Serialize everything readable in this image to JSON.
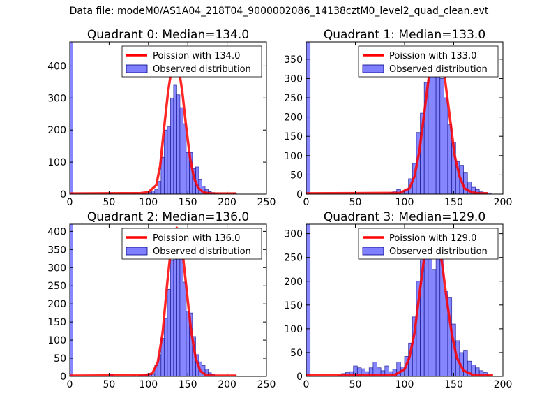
{
  "figure": {
    "title": "Data file: modeM0/AS1A04_218T04_9000002086_14138cztM0_level2_quad_clean.evt"
  },
  "colors": {
    "histogram_fill": "#7f7fff",
    "histogram_edge": "#00007f",
    "poisson_line": "#ff0000",
    "poisson_halo": "#ff8f8f"
  },
  "chart_data": [
    {
      "type": "bar",
      "title": "Quadrant 0: Median=134.0",
      "xlim": [
        0,
        250
      ],
      "ylim": [
        0,
        475
      ],
      "xticks": [
        0,
        50,
        100,
        150,
        200,
        250
      ],
      "yticks": [
        0,
        100,
        200,
        300,
        400
      ],
      "legend": {
        "position": "top-right",
        "line_label": "Poission with 134.0",
        "hist_label": "Observed distribution"
      },
      "histogram": {
        "bins": [
          [
            0,
            4,
            475
          ],
          [
            50,
            54,
            2
          ],
          [
            80,
            84,
            1
          ],
          [
            92,
            96,
            2
          ],
          [
            96,
            100,
            4
          ],
          [
            100,
            104,
            6
          ],
          [
            104,
            108,
            10
          ],
          [
            108,
            112,
            14
          ],
          [
            112,
            116,
            40
          ],
          [
            116,
            120,
            115
          ],
          [
            120,
            124,
            200
          ],
          [
            124,
            128,
            210
          ],
          [
            128,
            132,
            300
          ],
          [
            132,
            136,
            340
          ],
          [
            136,
            140,
            310
          ],
          [
            140,
            144,
            270
          ],
          [
            144,
            148,
            220
          ],
          [
            148,
            152,
            130
          ],
          [
            152,
            156,
            130
          ],
          [
            156,
            160,
            80
          ],
          [
            160,
            164,
            85
          ],
          [
            164,
            168,
            45
          ],
          [
            168,
            172,
            25
          ],
          [
            172,
            176,
            15
          ],
          [
            176,
            180,
            8
          ],
          [
            180,
            184,
            5
          ],
          [
            184,
            188,
            3
          ],
          [
            208,
            212,
            1
          ]
        ]
      },
      "poisson": {
        "x": [
          0,
          90,
          100,
          110,
          115,
          120,
          125,
          130,
          134,
          138,
          143,
          148,
          153,
          158,
          163,
          170,
          180,
          212
        ],
        "y": [
          2,
          3,
          6,
          28,
          90,
          210,
          320,
          400,
          415,
          400,
          320,
          210,
          110,
          50,
          20,
          5,
          2,
          2
        ]
      }
    },
    {
      "type": "bar",
      "title": "Quadrant 1: Median=133.0",
      "xlim": [
        0,
        200
      ],
      "ylim": [
        0,
        395
      ],
      "xticks": [
        0,
        50,
        100,
        150,
        200
      ],
      "yticks": [
        0,
        50,
        100,
        150,
        200,
        250,
        300,
        350
      ],
      "legend": {
        "position": "top-right",
        "line_label": "Poission with 133.0",
        "hist_label": "Observed distribution"
      },
      "histogram": {
        "bins": [
          [
            0,
            4,
            395
          ],
          [
            80,
            84,
            3
          ],
          [
            84,
            88,
            4
          ],
          [
            88,
            92,
            8
          ],
          [
            92,
            96,
            12
          ],
          [
            96,
            100,
            8
          ],
          [
            100,
            104,
            14
          ],
          [
            104,
            108,
            40
          ],
          [
            108,
            112,
            80
          ],
          [
            112,
            116,
            160
          ],
          [
            116,
            120,
            210
          ],
          [
            120,
            124,
            290
          ],
          [
            124,
            128,
            340
          ],
          [
            128,
            132,
            370
          ],
          [
            132,
            136,
            340
          ],
          [
            136,
            140,
            300
          ],
          [
            140,
            144,
            250
          ],
          [
            144,
            148,
            180
          ],
          [
            148,
            152,
            135
          ],
          [
            152,
            156,
            85
          ],
          [
            156,
            160,
            75
          ],
          [
            160,
            164,
            55
          ],
          [
            164,
            168,
            32
          ],
          [
            168,
            172,
            18
          ],
          [
            172,
            176,
            12
          ],
          [
            176,
            180,
            6
          ],
          [
            180,
            184,
            4
          ],
          [
            184,
            188,
            3
          ]
        ]
      },
      "poisson": {
        "x": [
          0,
          95,
          105,
          110,
          115,
          120,
          125,
          130,
          133,
          136,
          141,
          146,
          151,
          156,
          161,
          168,
          175,
          185
        ],
        "y": [
          2,
          3,
          15,
          45,
          110,
          210,
          310,
          370,
          378,
          365,
          300,
          200,
          100,
          45,
          15,
          5,
          2,
          2
        ]
      }
    },
    {
      "type": "bar",
      "title": "Quadrant 2: Median=136.0",
      "xlim": [
        0,
        250
      ],
      "ylim": [
        0,
        420
      ],
      "xticks": [
        0,
        50,
        100,
        150,
        200,
        250
      ],
      "yticks": [
        0,
        50,
        100,
        150,
        200,
        250,
        300,
        350,
        400
      ],
      "legend": {
        "position": "top-right",
        "line_label": "Poission with 136.0",
        "hist_label": "Observed distribution"
      },
      "histogram": {
        "bins": [
          [
            0,
            4,
            420
          ],
          [
            52,
            56,
            6
          ],
          [
            80,
            84,
            2
          ],
          [
            88,
            92,
            3
          ],
          [
            92,
            96,
            4
          ],
          [
            96,
            100,
            5
          ],
          [
            100,
            104,
            5
          ],
          [
            104,
            108,
            8
          ],
          [
            108,
            112,
            30
          ],
          [
            112,
            116,
            60
          ],
          [
            116,
            120,
            105
          ],
          [
            120,
            124,
            160
          ],
          [
            124,
            128,
            240
          ],
          [
            128,
            132,
            320
          ],
          [
            132,
            136,
            390
          ],
          [
            136,
            140,
            350
          ],
          [
            140,
            144,
            330
          ],
          [
            144,
            148,
            260
          ],
          [
            148,
            152,
            180
          ],
          [
            152,
            156,
            175
          ],
          [
            156,
            160,
            110
          ],
          [
            160,
            164,
            60
          ],
          [
            164,
            168,
            40
          ],
          [
            168,
            172,
            30
          ],
          [
            172,
            176,
            20
          ],
          [
            176,
            180,
            10
          ],
          [
            180,
            184,
            5
          ],
          [
            208,
            212,
            2
          ]
        ]
      },
      "poisson": {
        "x": [
          0,
          95,
          105,
          112,
          118,
          124,
          130,
          136,
          142,
          148,
          154,
          160,
          166,
          172,
          180,
          212
        ],
        "y": [
          2,
          3,
          8,
          40,
          120,
          260,
          380,
          410,
          370,
          250,
          130,
          50,
          15,
          5,
          2,
          2
        ]
      }
    },
    {
      "type": "bar",
      "title": "Quadrant 3: Median=129.0",
      "xlim": [
        0,
        200
      ],
      "ylim": [
        0,
        320
      ],
      "xticks": [
        0,
        50,
        100,
        150,
        200
      ],
      "yticks": [
        0,
        50,
        100,
        150,
        200,
        250,
        300
      ],
      "legend": {
        "position": "top-right",
        "line_label": "Poission with 129.0",
        "hist_label": "Observed distribution"
      },
      "histogram": {
        "bins": [
          [
            0,
            4,
            320
          ],
          [
            32,
            36,
            2
          ],
          [
            36,
            40,
            6
          ],
          [
            40,
            44,
            8
          ],
          [
            44,
            48,
            10
          ],
          [
            48,
            52,
            22
          ],
          [
            52,
            56,
            18
          ],
          [
            56,
            60,
            16
          ],
          [
            60,
            64,
            10
          ],
          [
            64,
            68,
            18
          ],
          [
            68,
            72,
            30
          ],
          [
            72,
            76,
            18
          ],
          [
            76,
            80,
            12
          ],
          [
            80,
            84,
            22
          ],
          [
            84,
            88,
            10
          ],
          [
            88,
            92,
            15
          ],
          [
            92,
            96,
            30
          ],
          [
            96,
            100,
            20
          ],
          [
            100,
            104,
            42
          ],
          [
            104,
            108,
            70
          ],
          [
            108,
            112,
            125
          ],
          [
            112,
            116,
            200
          ],
          [
            116,
            120,
            245
          ],
          [
            120,
            124,
            300
          ],
          [
            124,
            128,
            300
          ],
          [
            128,
            132,
            225
          ],
          [
            132,
            136,
            250
          ],
          [
            136,
            140,
            245
          ],
          [
            140,
            144,
            180
          ],
          [
            144,
            148,
            165
          ],
          [
            148,
            152,
            110
          ],
          [
            152,
            156,
            75
          ],
          [
            156,
            160,
            50
          ],
          [
            160,
            164,
            55
          ],
          [
            164,
            168,
            32
          ],
          [
            168,
            172,
            24
          ],
          [
            172,
            176,
            18
          ],
          [
            176,
            180,
            12
          ],
          [
            180,
            184,
            8
          ],
          [
            184,
            188,
            2
          ]
        ]
      },
      "poisson": {
        "x": [
          0,
          90,
          100,
          105,
          110,
          115,
          120,
          125,
          129,
          133,
          138,
          143,
          148,
          153,
          160,
          170,
          190
        ],
        "y": [
          2,
          3,
          15,
          40,
          90,
          170,
          250,
          300,
          310,
          295,
          240,
          160,
          90,
          40,
          12,
          3,
          2
        ]
      }
    }
  ]
}
